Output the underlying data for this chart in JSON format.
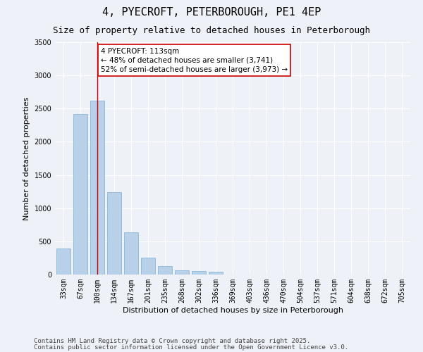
{
  "title": "4, PYECROFT, PETERBOROUGH, PE1 4EP",
  "subtitle": "Size of property relative to detached houses in Peterborough",
  "xlabel": "Distribution of detached houses by size in Peterborough",
  "ylabel": "Number of detached properties",
  "categories": [
    "33sqm",
    "67sqm",
    "100sqm",
    "134sqm",
    "167sqm",
    "201sqm",
    "235sqm",
    "268sqm",
    "302sqm",
    "336sqm",
    "369sqm",
    "403sqm",
    "436sqm",
    "470sqm",
    "504sqm",
    "537sqm",
    "571sqm",
    "604sqm",
    "638sqm",
    "672sqm",
    "705sqm"
  ],
  "values": [
    390,
    2420,
    2620,
    1240,
    640,
    250,
    130,
    65,
    50,
    45,
    0,
    0,
    0,
    0,
    0,
    0,
    0,
    0,
    0,
    0,
    0
  ],
  "bar_color": "#b8d0e8",
  "bar_edge_color": "#7aafd4",
  "vline_x_idx": 2,
  "vline_color": "#cc0000",
  "annotation_text": "4 PYECROFT: 113sqm\n← 48% of detached houses are smaller (3,741)\n52% of semi-detached houses are larger (3,973) →",
  "annotation_box_color": "#ffffff",
  "annotation_box_edge_color": "#cc0000",
  "ylim": [
    0,
    3500
  ],
  "yticks": [
    0,
    500,
    1000,
    1500,
    2000,
    2500,
    3000,
    3500
  ],
  "footer_line1": "Contains HM Land Registry data © Crown copyright and database right 2025.",
  "footer_line2": "Contains public sector information licensed under the Open Government Licence v3.0.",
  "background_color": "#eef2f8",
  "plot_background": "#eef2f8",
  "grid_color": "#ffffff",
  "title_fontsize": 11,
  "subtitle_fontsize": 9,
  "axis_label_fontsize": 8,
  "tick_fontsize": 7,
  "annotation_fontsize": 7.5,
  "footer_fontsize": 6.5
}
